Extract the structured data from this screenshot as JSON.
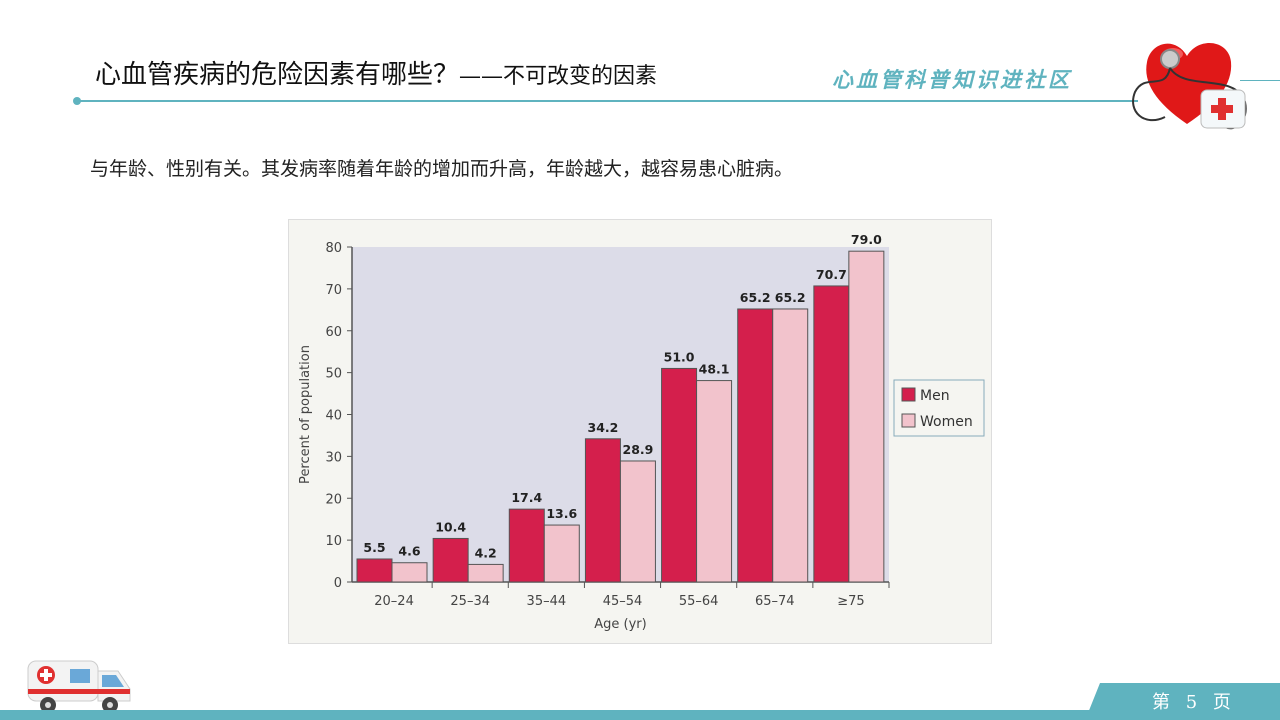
{
  "header": {
    "title": "心血管疾病的危险因素有哪些？",
    "subtitle": "——不可改变的因素",
    "brand": "心血管科普知识进社区"
  },
  "body_text": "与年龄、性别有关。其发病率随着年龄的增加而升高，年龄越大，越容易患心脏病。",
  "footer": {
    "page_label": "第 5 页"
  },
  "colors": {
    "accent": "#5fb3bf",
    "men": "#d41f4c",
    "women": "#f2c3cc",
    "plot_bg": "#dcdce8"
  },
  "chart_data": {
    "type": "bar",
    "categories": [
      "20–24",
      "25–34",
      "35–44",
      "45–54",
      "55–64",
      "65–74",
      "≥75"
    ],
    "series": [
      {
        "name": "Men",
        "values": [
          5.5,
          10.4,
          17.4,
          34.2,
          51.0,
          65.2,
          70.7
        ]
      },
      {
        "name": "Women",
        "values": [
          4.6,
          4.2,
          13.6,
          28.9,
          48.1,
          65.2,
          79.0
        ]
      }
    ],
    "data_labels": {
      "Men": [
        "5.5",
        "10.4",
        "17.4",
        "34.2",
        "51.0",
        "65.2",
        "70.7"
      ],
      "Women": [
        "4.6",
        "4.2",
        "13.6",
        "28.9",
        "48.1",
        "65.2",
        "79.0"
      ]
    },
    "xlabel": "Age (yr)",
    "ylabel": "Percent of population",
    "ylim": [
      0,
      80
    ],
    "yticks": [
      0,
      10,
      20,
      30,
      40,
      50,
      60,
      70,
      80
    ],
    "grid": false,
    "legend": "right"
  }
}
